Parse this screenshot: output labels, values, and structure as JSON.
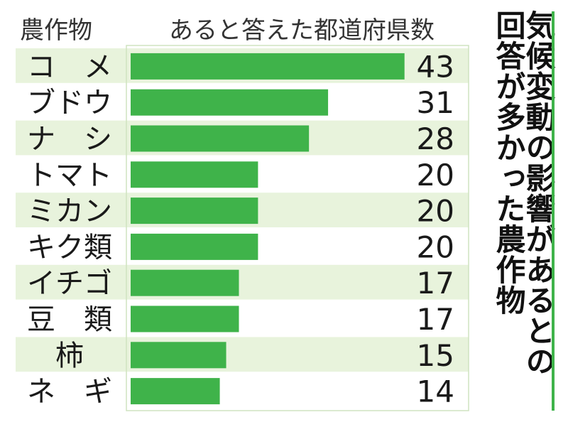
{
  "title_lines": [
    "気候変動の影響があるとの",
    "回答が多かった農作物"
  ],
  "chart_data": {
    "type": "bar",
    "orientation": "horizontal",
    "category_header": "農作物",
    "value_header": "あると答えた都道府県数",
    "categories": [
      "コ　メ",
      "ブドウ",
      "ナ　シ",
      "トマト",
      "ミカン",
      "キク類",
      "イチゴ",
      "豆　類",
      "柿",
      "ネ　ギ"
    ],
    "values": [
      43,
      31,
      28,
      20,
      20,
      20,
      17,
      17,
      15,
      14
    ],
    "bar_color": "#3fb34a",
    "stripe_color": "#e8f3dc"
  }
}
